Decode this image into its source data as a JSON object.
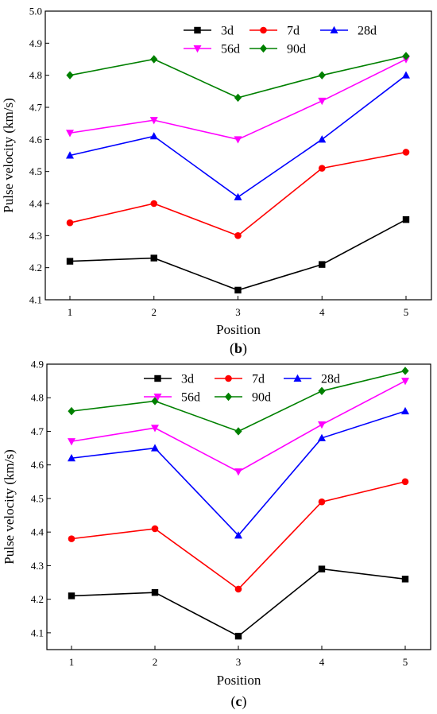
{
  "panels": [
    {
      "label": "b",
      "chart_data": {
        "type": "line",
        "xlabel": "Position",
        "ylabel": "Pulse velocity (km/s)",
        "x": [
          1,
          2,
          3,
          4,
          5
        ],
        "ylim": [
          4.1,
          5.0
        ],
        "yticks": [
          "4.1",
          "4.2",
          "4.3",
          "4.4",
          "4.5",
          "4.6",
          "4.7",
          "4.8",
          "4.9",
          "5.0"
        ],
        "xticks": [
          "1",
          "2",
          "3",
          "4",
          "5"
        ],
        "grid": false,
        "legend": "top",
        "series": [
          {
            "name": "3d",
            "color": "#000000",
            "marker": "square",
            "values": [
              4.22,
              4.23,
              4.13,
              4.21,
              4.35
            ]
          },
          {
            "name": "7d",
            "color": "#ff0000",
            "marker": "circle",
            "values": [
              4.34,
              4.4,
              4.3,
              4.51,
              4.56
            ]
          },
          {
            "name": "28d",
            "color": "#0000ff",
            "marker": "triangle-up",
            "values": [
              4.55,
              4.61,
              4.42,
              4.6,
              4.8
            ]
          },
          {
            "name": "56d",
            "color": "#ff00ff",
            "marker": "triangle-down",
            "values": [
              4.62,
              4.66,
              4.6,
              4.72,
              4.85
            ]
          },
          {
            "name": "90d",
            "color": "#008000",
            "marker": "diamond",
            "values": [
              4.8,
              4.85,
              4.73,
              4.8,
              4.86
            ]
          }
        ]
      }
    },
    {
      "label": "c",
      "chart_data": {
        "type": "line",
        "xlabel": "Position",
        "ylabel": "Pulse velocity (km/s)",
        "x": [
          1,
          2,
          3,
          4,
          5
        ],
        "ylim": [
          4.05,
          4.9
        ],
        "yticks": [
          "4.1",
          "4.2",
          "4.3",
          "4.4",
          "4.5",
          "4.6",
          "4.7",
          "4.8",
          "4.9"
        ],
        "xticks": [
          "1",
          "2",
          "3",
          "4",
          "5"
        ],
        "grid": false,
        "legend": "top",
        "series": [
          {
            "name": "3d",
            "color": "#000000",
            "marker": "square",
            "values": [
              4.21,
              4.22,
              4.09,
              4.29,
              4.26
            ]
          },
          {
            "name": "7d",
            "color": "#ff0000",
            "marker": "circle",
            "values": [
              4.38,
              4.41,
              4.23,
              4.49,
              4.55
            ]
          },
          {
            "name": "28d",
            "color": "#0000ff",
            "marker": "triangle-up",
            "values": [
              4.62,
              4.65,
              4.39,
              4.68,
              4.76
            ]
          },
          {
            "name": "56d",
            "color": "#ff00ff",
            "marker": "triangle-down",
            "values": [
              4.67,
              4.71,
              4.58,
              4.72,
              4.85
            ]
          },
          {
            "name": "90d",
            "color": "#008000",
            "marker": "diamond",
            "values": [
              4.76,
              4.79,
              4.7,
              4.82,
              4.88
            ]
          }
        ]
      }
    }
  ]
}
